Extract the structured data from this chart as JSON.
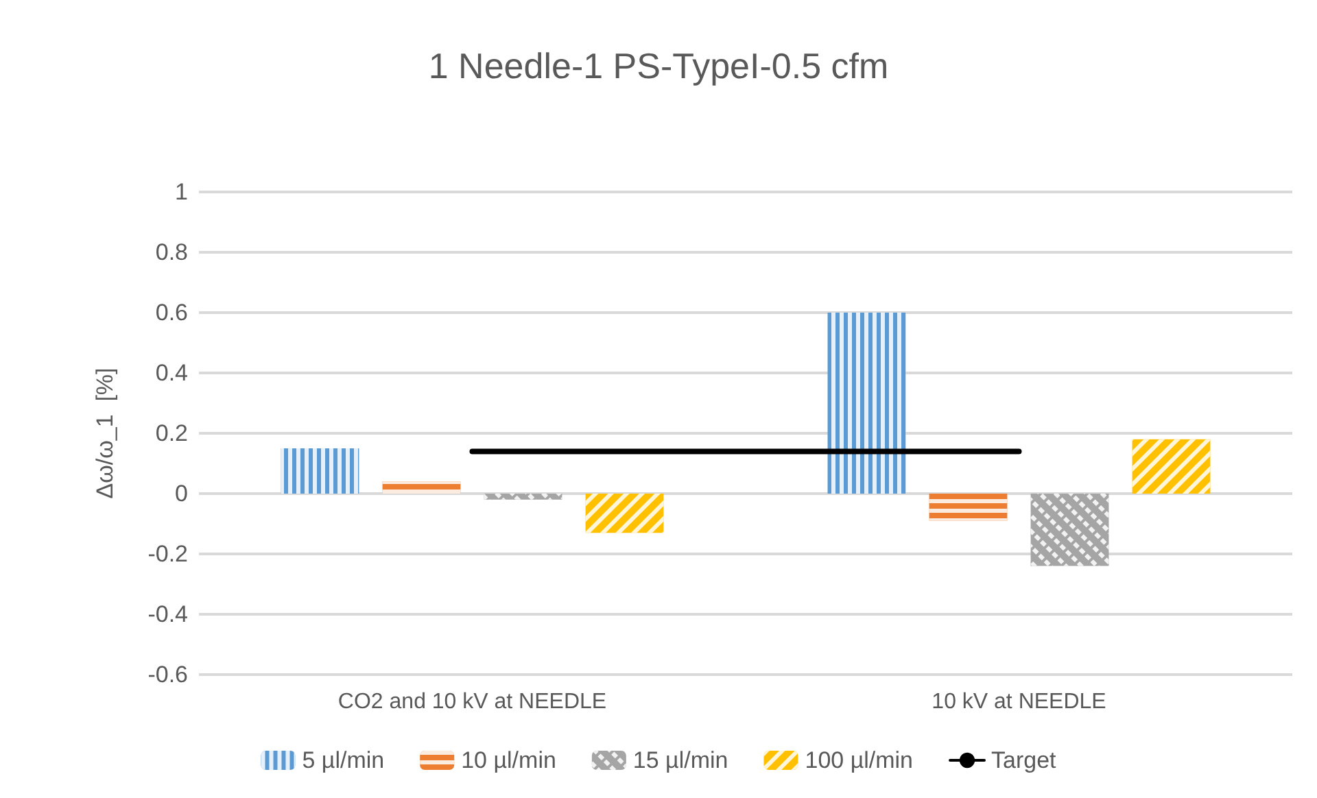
{
  "chart_data": {
    "type": "bar",
    "title": "1 Needle-1 PS-TypeI-0.5 cfm",
    "ylabel": "Δω/ω_1  [%]",
    "categories": [
      "CO2 and 10 kV at NEEDLE",
      "10 kV at NEEDLE"
    ],
    "series": [
      {
        "name": "5 µl/min",
        "color": "#5b9bd5",
        "values": [
          0.15,
          0.6
        ]
      },
      {
        "name": "10 µl/min",
        "color": "#ed7d31",
        "values": [
          0.04,
          -0.09
        ]
      },
      {
        "name": "15 µl/min",
        "color": "#a5a5a5",
        "values": [
          -0.02,
          -0.24
        ]
      },
      {
        "name": "100 µl/min",
        "color": "#ffc000",
        "values": [
          -0.13,
          0.18
        ]
      },
      {
        "name": "Target",
        "type": "line",
        "color": "#000000",
        "values": [
          0.14,
          0.14
        ],
        "marker": "none"
      }
    ],
    "ylim": [
      -0.6,
      1
    ],
    "yticks": [
      -0.6,
      -0.4,
      -0.2,
      0,
      0.2,
      0.4,
      0.6,
      0.8,
      1
    ],
    "grid": "y",
    "legend": "bottom"
  }
}
